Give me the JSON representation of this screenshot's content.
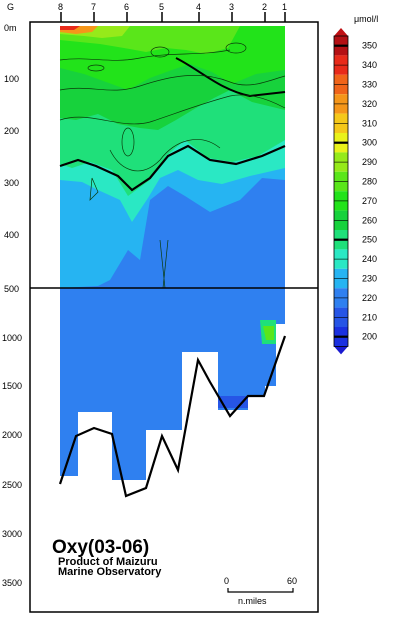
{
  "chart_data": {
    "type": "heatmap",
    "title": "Oxy(03-06)",
    "subtitle_lines": [
      "Product of Maizuru",
      "Marine Observatory"
    ],
    "variable": "dissolved oxygen",
    "unit_label": "μmol/l",
    "x_axis": {
      "position": "top",
      "station_labels": [
        "G",
        "8",
        "7",
        "6",
        "5",
        "4",
        "3",
        "2",
        "1"
      ]
    },
    "y_axis": {
      "label_top": "0m",
      "upper_ticks": [
        "100",
        "200",
        "300",
        "400"
      ],
      "split_depth_label": "500",
      "lower_ticks": [
        "1000",
        "1500",
        "2000",
        "2500",
        "3000",
        "3500"
      ],
      "upper_range_m": [
        0,
        500
      ],
      "lower_range_m": [
        500,
        4000
      ]
    },
    "scale_bar": {
      "ticks": [
        "0",
        "60"
      ],
      "unit": "n.miles"
    },
    "colorbar": {
      "levels": [
        200,
        210,
        220,
        230,
        240,
        250,
        260,
        270,
        280,
        290,
        300,
        310,
        320,
        330,
        340,
        350
      ],
      "labels": [
        "200",
        "210",
        "220",
        "230",
        "240",
        "250",
        "260",
        "270",
        "280",
        "290",
        "300",
        "310",
        "320",
        "330",
        "340",
        "350"
      ],
      "colors": [
        "#1a30e0",
        "#2655e6",
        "#2f80f0",
        "#26b4f2",
        "#2ae8c4",
        "#1fe07a",
        "#17d23c",
        "#22e31a",
        "#5ae61a",
        "#96ea1a",
        "#eaf21a",
        "#f5c81a",
        "#f5961a",
        "#f0641a",
        "#e82a1a",
        "#b41014"
      ],
      "highlighted_levels": [
        200,
        250,
        300,
        350
      ]
    },
    "bottom_profile": {
      "description": "sea floor depth along section",
      "points_m": [
        2470,
        1950,
        1920,
        2000,
        2620,
        2520,
        2020,
        2380,
        1250,
        1450,
        1820,
        1600,
        1600,
        1020
      ]
    }
  }
}
